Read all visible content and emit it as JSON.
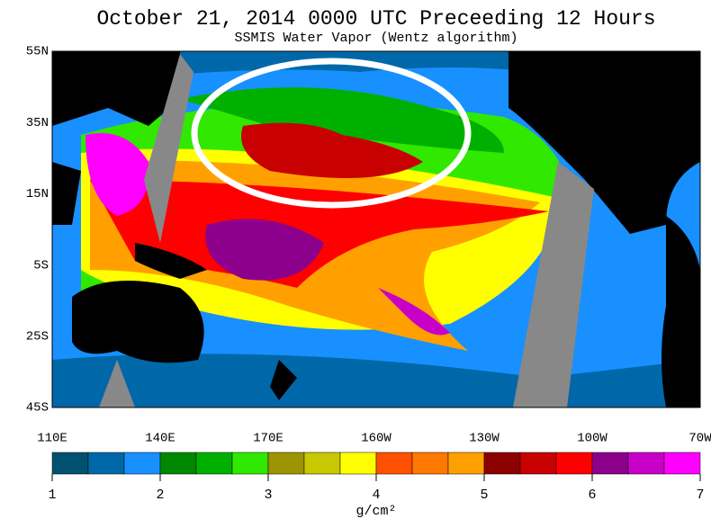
{
  "header": {
    "title": "October 21, 2014  0000 UTC  Preceeding 12 Hours",
    "subtitle": "SSMIS Water Vapor (Wentz algorithm)"
  },
  "map": {
    "lat_labels": [
      "55N",
      "35N",
      "15N",
      "5S",
      "25S",
      "45S"
    ],
    "lon_labels": [
      "110E",
      "140E",
      "170E",
      "160W",
      "130W",
      "100W",
      "70W"
    ]
  },
  "colorbar": {
    "ticks": [
      1,
      2,
      3,
      4,
      5,
      6,
      7
    ],
    "colors": [
      "#005070",
      "#0068a8",
      "#1890ff",
      "#008800",
      "#00b000",
      "#30e800",
      "#9c9400",
      "#c8c800",
      "#ffff00",
      "#ff5000",
      "#ff7800",
      "#ffa000",
      "#8c0000",
      "#c80000",
      "#ff0000",
      "#8c008c",
      "#c800c8",
      "#ff00ff"
    ],
    "unit": "g/cm²"
  }
}
